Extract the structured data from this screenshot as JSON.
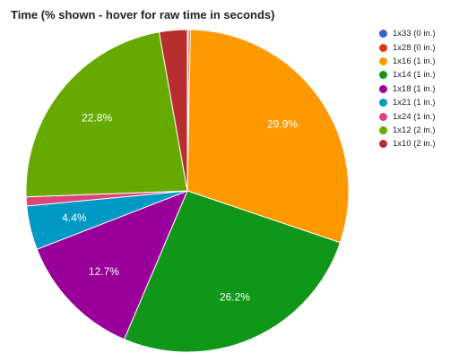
{
  "chart_data": {
    "type": "pie",
    "title": "Time (% shown - hover for raw time in seconds)",
    "legend_position": "right",
    "slices": [
      {
        "label": "1x33 (0 in.)",
        "value": 0.1,
        "color": "#3366cc"
      },
      {
        "label": "1x28 (0 in.)",
        "value": 0.2,
        "color": "#dc3912"
      },
      {
        "label": "1x16 (1 in.)",
        "value": 29.9,
        "color": "#ff9900",
        "data_label": "29.9%"
      },
      {
        "label": "1x14 (1 in.)",
        "value": 26.2,
        "color": "#109618",
        "data_label": "26.2%"
      },
      {
        "label": "1x18 (1 in.)",
        "value": 12.7,
        "color": "#990099",
        "data_label": "12.7%"
      },
      {
        "label": "1x21 (1 in.)",
        "value": 4.4,
        "color": "#0099c6",
        "data_label": "4.4%"
      },
      {
        "label": "1x24 (1 in.)",
        "value": 0.9,
        "color": "#dd4477"
      },
      {
        "label": "1x12 (2 in.)",
        "value": 22.8,
        "color": "#66aa00",
        "data_label": "22.8%"
      },
      {
        "label": "1x10 (2 in.)",
        "value": 2.8,
        "color": "#b82e2e"
      }
    ]
  }
}
